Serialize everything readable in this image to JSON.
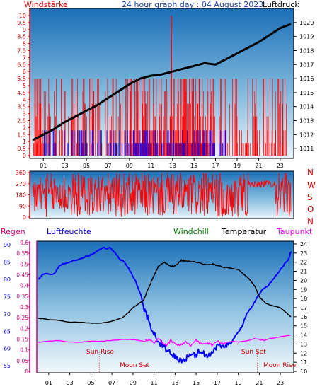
{
  "colors": {
    "wind_axis": "#d00000",
    "wind_bar_high": "#ff0000",
    "wind_bar_low": "#0000ff",
    "pressure": "#000000",
    "dir_axis": "#d00000",
    "humidity": "#0000ff",
    "temperature": "#000000",
    "dewpoint": "#ff00ff",
    "windchill": "#008000",
    "regen": "#cc0077",
    "gradient_top": "#1a6fb8",
    "gradient_bottom": "#ffffff"
  },
  "header": {
    "windstaerke": "Windstärke",
    "title": "24 hour graph day : 04 August 2023",
    "luftdruck": "Luftdruck"
  },
  "legend": {
    "regen": "Regen",
    "luftfeuchte": "Luftfeuchte",
    "windchill": "Windchill",
    "temperatur": "Temperatur",
    "taupunkt": "Taupunkt"
  },
  "direction_letters": [
    "N",
    "W",
    "S",
    "O",
    "N"
  ],
  "annotations": {
    "sun_rise": "Sun Rise",
    "moon_set": "Moon Set",
    "sun_set": "Sun Set",
    "moon_rise": "Moon Rise"
  },
  "chart_data": [
    {
      "type": "bar",
      "name": "wind-and-pressure",
      "x_ticks": [
        "01",
        "03",
        "05",
        "07",
        "09",
        "11",
        "13",
        "15",
        "17",
        "19",
        "21",
        "23"
      ],
      "wind_ylim": [
        0,
        10
      ],
      "wind_ticks": [
        "0",
        "0.5",
        "1",
        "1.5",
        "2",
        "2.5",
        "3",
        "3.5",
        "4",
        "4.5",
        "5",
        "5.5",
        "6",
        "6.5",
        "7",
        "7.5",
        "8",
        "8.5",
        "9",
        "9.5",
        "10"
      ],
      "pressure_ylim": [
        1010.5,
        1020.5
      ],
      "pressure_ticks": [
        "1011",
        "1012",
        "1013",
        "1014",
        "1015",
        "1016",
        "1017",
        "1018",
        "1019",
        "1020"
      ],
      "wind_gust_levels": [
        0,
        0.9,
        1.8,
        2.8,
        3.7,
        4.6,
        5.5
      ],
      "wind_peak": {
        "hour": 12.9,
        "value": 10
      },
      "pressure_series": [
        [
          0,
          1011.6
        ],
        [
          1,
          1012.0
        ],
        [
          2,
          1012.4
        ],
        [
          3,
          1012.9
        ],
        [
          4,
          1013.3
        ],
        [
          5,
          1013.7
        ],
        [
          6,
          1014.1
        ],
        [
          7,
          1014.6
        ],
        [
          8,
          1015.1
        ],
        [
          9,
          1015.6
        ],
        [
          10,
          1016.0
        ],
        [
          11,
          1016.2
        ],
        [
          12,
          1016.3
        ],
        [
          13,
          1016.5
        ],
        [
          14,
          1016.7
        ],
        [
          15,
          1016.9
        ],
        [
          16,
          1017.1
        ],
        [
          17,
          1017.0
        ],
        [
          18,
          1017.4
        ],
        [
          19,
          1017.8
        ],
        [
          20,
          1018.2
        ],
        [
          21,
          1018.6
        ],
        [
          22,
          1019.1
        ],
        [
          23,
          1019.6
        ],
        [
          24,
          1019.9
        ]
      ]
    },
    {
      "type": "line",
      "name": "wind-direction",
      "ylim": [
        0,
        360
      ],
      "y_ticks": [
        "0",
        "90",
        "180",
        "270",
        "360"
      ]
    },
    {
      "type": "line",
      "name": "humidity-temperature-dewpoint",
      "regen_ylim": [
        0,
        0.6
      ],
      "regen_ticks": [
        "0",
        "0.05",
        "0.1",
        "0.15",
        "0.2",
        "0.25",
        "0.3",
        "0.35",
        "0.4",
        "0.45",
        "0.5",
        "0.55",
        "0.6"
      ],
      "humidity_ylim": [
        53,
        91
      ],
      "humidity_ticks": [
        "55",
        "60",
        "65",
        "70",
        "75",
        "80",
        "85",
        "90"
      ],
      "temp_ylim": [
        10,
        24
      ],
      "temp_ticks": [
        "10",
        "11",
        "12",
        "13",
        "14",
        "15",
        "16",
        "17",
        "18",
        "19",
        "20",
        "21",
        "22",
        "23",
        "24"
      ],
      "x_ticks": [
        "01",
        "03",
        "05",
        "07",
        "09",
        "11",
        "13",
        "15",
        "17",
        "19",
        "21",
        "23"
      ],
      "events": {
        "sun_rise": 5.8,
        "moon_set": 5.8,
        "sun_set": 20.8,
        "moon_rise": 20.8
      },
      "series": [
        {
          "name": "Luftfeuchte",
          "points": [
            [
              0,
              80
            ],
            [
              0.5,
              81.5
            ],
            [
              1.5,
              81.5
            ],
            [
              2,
              84
            ],
            [
              3,
              85
            ],
            [
              4,
              86
            ],
            [
              5,
              87
            ],
            [
              5.6,
              88
            ],
            [
              6,
              89
            ],
            [
              6.8,
              89
            ],
            [
              7.2,
              88
            ],
            [
              7.7,
              86
            ],
            [
              8.2,
              85
            ],
            [
              8.8,
              82
            ],
            [
              9.3,
              79
            ],
            [
              9.8,
              75
            ],
            [
              10,
              72
            ],
            [
              10.4,
              69
            ],
            [
              10.8,
              65
            ],
            [
              11.2,
              63
            ],
            [
              11.8,
              61
            ],
            [
              12.3,
              59
            ],
            [
              12.8,
              58
            ],
            [
              13.3,
              57
            ],
            [
              13.8,
              56.5
            ],
            [
              14.3,
              57.5
            ],
            [
              14.8,
              58
            ],
            [
              15.3,
              59
            ],
            [
              15.8,
              58.5
            ],
            [
              16.3,
              58
            ],
            [
              16.8,
              60
            ],
            [
              17.3,
              61
            ],
            [
              17.8,
              61
            ],
            [
              18.3,
              61.5
            ],
            [
              18.8,
              64
            ],
            [
              19.3,
              66
            ],
            [
              19.8,
              70
            ],
            [
              20.3,
              72
            ],
            [
              20.8,
              75
            ],
            [
              21.3,
              77
            ],
            [
              21.8,
              78
            ],
            [
              22.3,
              80
            ],
            [
              22.8,
              82
            ],
            [
              23.3,
              84
            ],
            [
              23.8,
              86
            ],
            [
              24,
              88
            ]
          ]
        },
        {
          "name": "Temperatur",
          "points": [
            [
              0,
              15.8
            ],
            [
              0.5,
              15.8
            ],
            [
              1,
              15.7
            ],
            [
              2,
              15.6
            ],
            [
              3,
              15.4
            ],
            [
              4,
              15.4
            ],
            [
              5,
              15.3
            ],
            [
              6,
              15.3
            ],
            [
              7,
              15.5
            ],
            [
              8,
              15.9
            ],
            [
              8.6,
              16.5
            ],
            [
              9,
              17.0
            ],
            [
              10,
              17.8
            ],
            [
              10.6,
              19.5
            ],
            [
              11,
              20.5
            ],
            [
              11.4,
              21.5
            ],
            [
              12,
              22.0
            ],
            [
              12.6,
              21.5
            ],
            [
              13,
              21.6
            ],
            [
              13.6,
              22.2
            ],
            [
              14,
              22.1
            ],
            [
              15,
              22.0
            ],
            [
              16,
              21.7
            ],
            [
              16.6,
              21.8
            ],
            [
              17,
              21.6
            ],
            [
              18,
              21.4
            ],
            [
              19,
              21.2
            ],
            [
              20,
              20.2
            ],
            [
              20.6,
              19.3
            ],
            [
              21,
              18.2
            ],
            [
              21.6,
              17.5
            ],
            [
              22,
              17.3
            ],
            [
              23,
              17.0
            ],
            [
              23.6,
              16.4
            ],
            [
              24,
              16.0
            ]
          ]
        },
        {
          "name": "Taupunkt",
          "points": [
            [
              0,
              13.2
            ],
            [
              1,
              13.3
            ],
            [
              2,
              13.4
            ],
            [
              3,
              13.2
            ],
            [
              4,
              13.2
            ],
            [
              5,
              13.3
            ],
            [
              6,
              13.3
            ],
            [
              7,
              13.4
            ],
            [
              8,
              13.5
            ],
            [
              9,
              13.5
            ],
            [
              10,
              13.3
            ],
            [
              10.5,
              13.5
            ],
            [
              11,
              13.1
            ],
            [
              11.4,
              13.6
            ],
            [
              11.8,
              13.1
            ],
            [
              12.2,
              12.8
            ],
            [
              12.6,
              13.4
            ],
            [
              13,
              13.0
            ],
            [
              13.5,
              12.9
            ],
            [
              14,
              13.2
            ],
            [
              14.5,
              12.8
            ],
            [
              15,
              13.4
            ],
            [
              15.5,
              13.0
            ],
            [
              16,
              13.1
            ],
            [
              16.5,
              12.9
            ],
            [
              17,
              13.3
            ],
            [
              17.5,
              13.0
            ],
            [
              18,
              13.2
            ],
            [
              18.5,
              13.3
            ],
            [
              19,
              13.2
            ],
            [
              19.5,
              13.3
            ],
            [
              20,
              13.4
            ],
            [
              20.5,
              13.6
            ],
            [
              21,
              13.5
            ],
            [
              21.5,
              13.4
            ],
            [
              22,
              13.6
            ],
            [
              22.5,
              13.7
            ],
            [
              23,
              13.8
            ],
            [
              23.5,
              13.9
            ],
            [
              24,
              14.0
            ]
          ]
        }
      ]
    }
  ]
}
